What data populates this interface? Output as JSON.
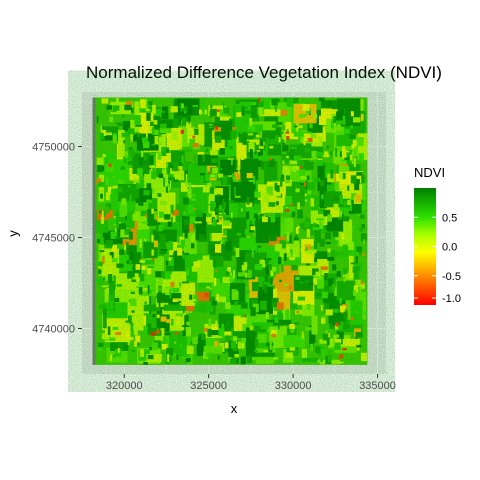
{
  "chart_data": {
    "type": "heatmap",
    "title": "Normalized Difference Vegetation Index (NDVI)",
    "xlabel": "x",
    "ylabel": "y",
    "xlim": [
      317500,
      335500
    ],
    "ylim": [
      4737500,
      4753000
    ],
    "x_ticks": [
      320000,
      325000,
      330000,
      335000
    ],
    "x_tick_labels": [
      "320000",
      "325000",
      "330000",
      "335000"
    ],
    "y_ticks": [
      4740000,
      4745000,
      4750000
    ],
    "y_tick_labels": [
      "4740000",
      "4745000",
      "4750000"
    ],
    "raster_extent": {
      "x": [
        318300,
        334400
      ],
      "y": [
        4738000,
        4752700
      ]
    },
    "legend": {
      "title": "NDVI",
      "position": "right",
      "range": [
        -1.0,
        1.0
      ],
      "ticks": [
        0.5,
        0.0,
        -0.5,
        -1.0
      ],
      "tick_labels": [
        "0.5",
        "0.0",
        "-0.5",
        "-1.0"
      ],
      "gradient": [
        {
          "value": -1.0,
          "color": "#ff0000"
        },
        {
          "value": -0.5,
          "color": "#ff8c00"
        },
        {
          "value": -0.1,
          "color": "#ffff00"
        },
        {
          "value": 0.2,
          "color": "#aaff00"
        },
        {
          "value": 0.5,
          "color": "#2ee000"
        },
        {
          "value": 1.0,
          "color": "#008000"
        }
      ]
    },
    "panel_background": "#ebebeb",
    "grid": true
  }
}
